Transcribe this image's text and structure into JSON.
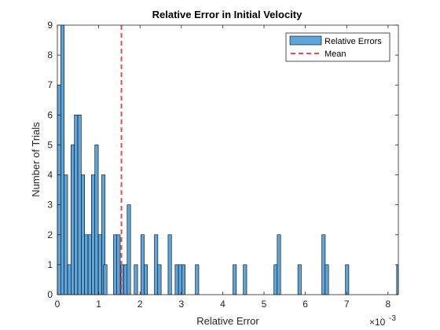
{
  "chart_data": {
    "type": "bar",
    "title": "Relative Error in Initial Velocity",
    "xlabel": "Relative Error",
    "ylabel": "Number of Trials",
    "x_exponent_base": "×10",
    "x_exponent_power": "-3",
    "xlim": [
      0,
      8.25
    ],
    "ylim": [
      0,
      9
    ],
    "xticks": [
      "0",
      "1",
      "2",
      "3",
      "4",
      "5",
      "6",
      "7",
      "8"
    ],
    "yticks": [
      "0",
      "1",
      "2",
      "3",
      "4",
      "5",
      "6",
      "7",
      "8",
      "9"
    ],
    "bin_width": 0.0825,
    "bar_color": "#5DA5DA",
    "bar_edge_color": "#000000",
    "mean_color": "#E84C4C",
    "mean_value": 1.55,
    "legend_position": "top-right",
    "legend": [
      "Relative Errors",
      "Mean"
    ],
    "series": [
      {
        "name": "Relative Errors",
        "counts": [
          7,
          9,
          4,
          1,
          5,
          6,
          6,
          4,
          2,
          2,
          4,
          5,
          2,
          4,
          1,
          2,
          1,
          2,
          2,
          0,
          0,
          1,
          1,
          3,
          1,
          0,
          0,
          0,
          0,
          0,
          0,
          0,
          0,
          0,
          0,
          0,
          0,
          0,
          0,
          0,
          0,
          0,
          0,
          0,
          0,
          0,
          0,
          0,
          0,
          0,
          0,
          0,
          0,
          0,
          0,
          0,
          0,
          0,
          0,
          0,
          0,
          0,
          0,
          0,
          0,
          0,
          0,
          0,
          0,
          0,
          0,
          0,
          0,
          0,
          0,
          0,
          0,
          0,
          0,
          0,
          0,
          0,
          0,
          0,
          0,
          0,
          0,
          0,
          0,
          0,
          0,
          0,
          0,
          0,
          0,
          0,
          0,
          0,
          0,
          0
        ],
        "sparse": [
          [
            1.16,
            1
          ],
          [
            1.32,
            0
          ],
          [
            1.4,
            2
          ],
          [
            1.48,
            2
          ],
          [
            1.57,
            1
          ],
          [
            1.65,
            1
          ],
          [
            1.73,
            3
          ],
          [
            1.9,
            1
          ],
          [
            2.06,
            2
          ],
          [
            2.14,
            1
          ],
          [
            2.39,
            2
          ],
          [
            2.47,
            1
          ],
          [
            2.72,
            2
          ],
          [
            2.89,
            1
          ],
          [
            2.97,
            1
          ],
          [
            3.05,
            1
          ],
          [
            3.38,
            1
          ],
          [
            4.29,
            1
          ],
          [
            4.54,
            1
          ],
          [
            5.28,
            1
          ],
          [
            5.36,
            2
          ],
          [
            5.86,
            1
          ],
          [
            6.44,
            2
          ],
          [
            6.52,
            1
          ],
          [
            7.01,
            1
          ],
          [
            8.25,
            1
          ]
        ]
      }
    ]
  }
}
